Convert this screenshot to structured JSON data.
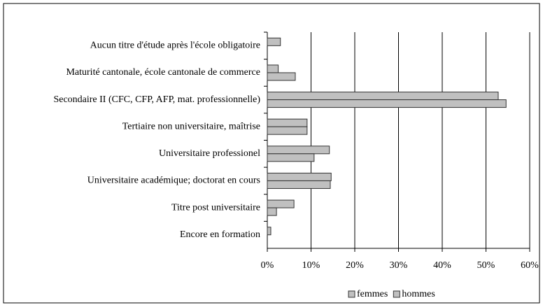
{
  "chart_data": {
    "type": "hbar",
    "categories": [
      "Aucun titre d'étude après l'école obligatoire",
      "Maturité cantonale, école cantonale de commerce",
      "Secondaire II (CFC, CFP, AFP, mat. professionnelle)",
      "Tertiaire  non universitaire, maîtrise",
      "Universitaire professionel",
      "Universitaire académique; doctorat en cours",
      "Titre post universitaire",
      "Encore en formation"
    ],
    "series": [
      {
        "name": "femmes",
        "color": "#c0c0c0",
        "values": [
          3.0,
          2.5,
          52.8,
          9.1,
          14.2,
          14.6,
          6.1,
          0.8
        ]
      },
      {
        "name": "hommes",
        "color": "#c0c0c0",
        "values": [
          0,
          6.4,
          54.6,
          9.1,
          10.7,
          14.4,
          2.1,
          0
        ]
      }
    ],
    "xlim": [
      0,
      60
    ],
    "xticks": [
      {
        "value": 0,
        "label": "0%"
      },
      {
        "value": 10,
        "label": "10%"
      },
      {
        "value": 20,
        "label": "20%"
      },
      {
        "value": 30,
        "label": "30%"
      },
      {
        "value": 40,
        "label": "40%"
      },
      {
        "value": 50,
        "label": "50%"
      },
      {
        "value": 60,
        "label": "60%"
      }
    ],
    "grid": true,
    "legend": "bottom"
  }
}
